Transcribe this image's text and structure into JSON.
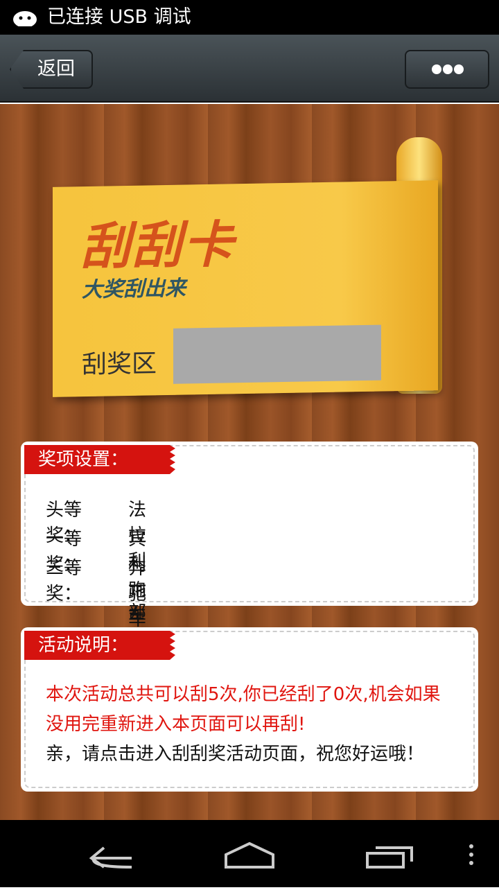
{
  "status_bar": {
    "text": "已连接 USB 调试"
  },
  "nav": {
    "back": "返回"
  },
  "card": {
    "title": "刮刮卡",
    "subtitle": "大奖刮出来",
    "scratch_label": "刮奖区"
  },
  "prizes": {
    "heading": "奖项设置：",
    "rows": [
      [
        "头等奖：",
        "法拉利一部"
      ],
      [
        "一等奖：",
        "宾利跑车"
      ],
      [
        "三等奖：",
        "奔驰车一部"
      ]
    ]
  },
  "rules": {
    "heading": "活动说明：",
    "notice": "本次活动总共可以刮5次,你已经刮了0次,机会如果没用完重新进入本页面可以再刮!",
    "greeting": "亲，请点击进入刮刮奖活动页面，祝您好运哦！"
  }
}
